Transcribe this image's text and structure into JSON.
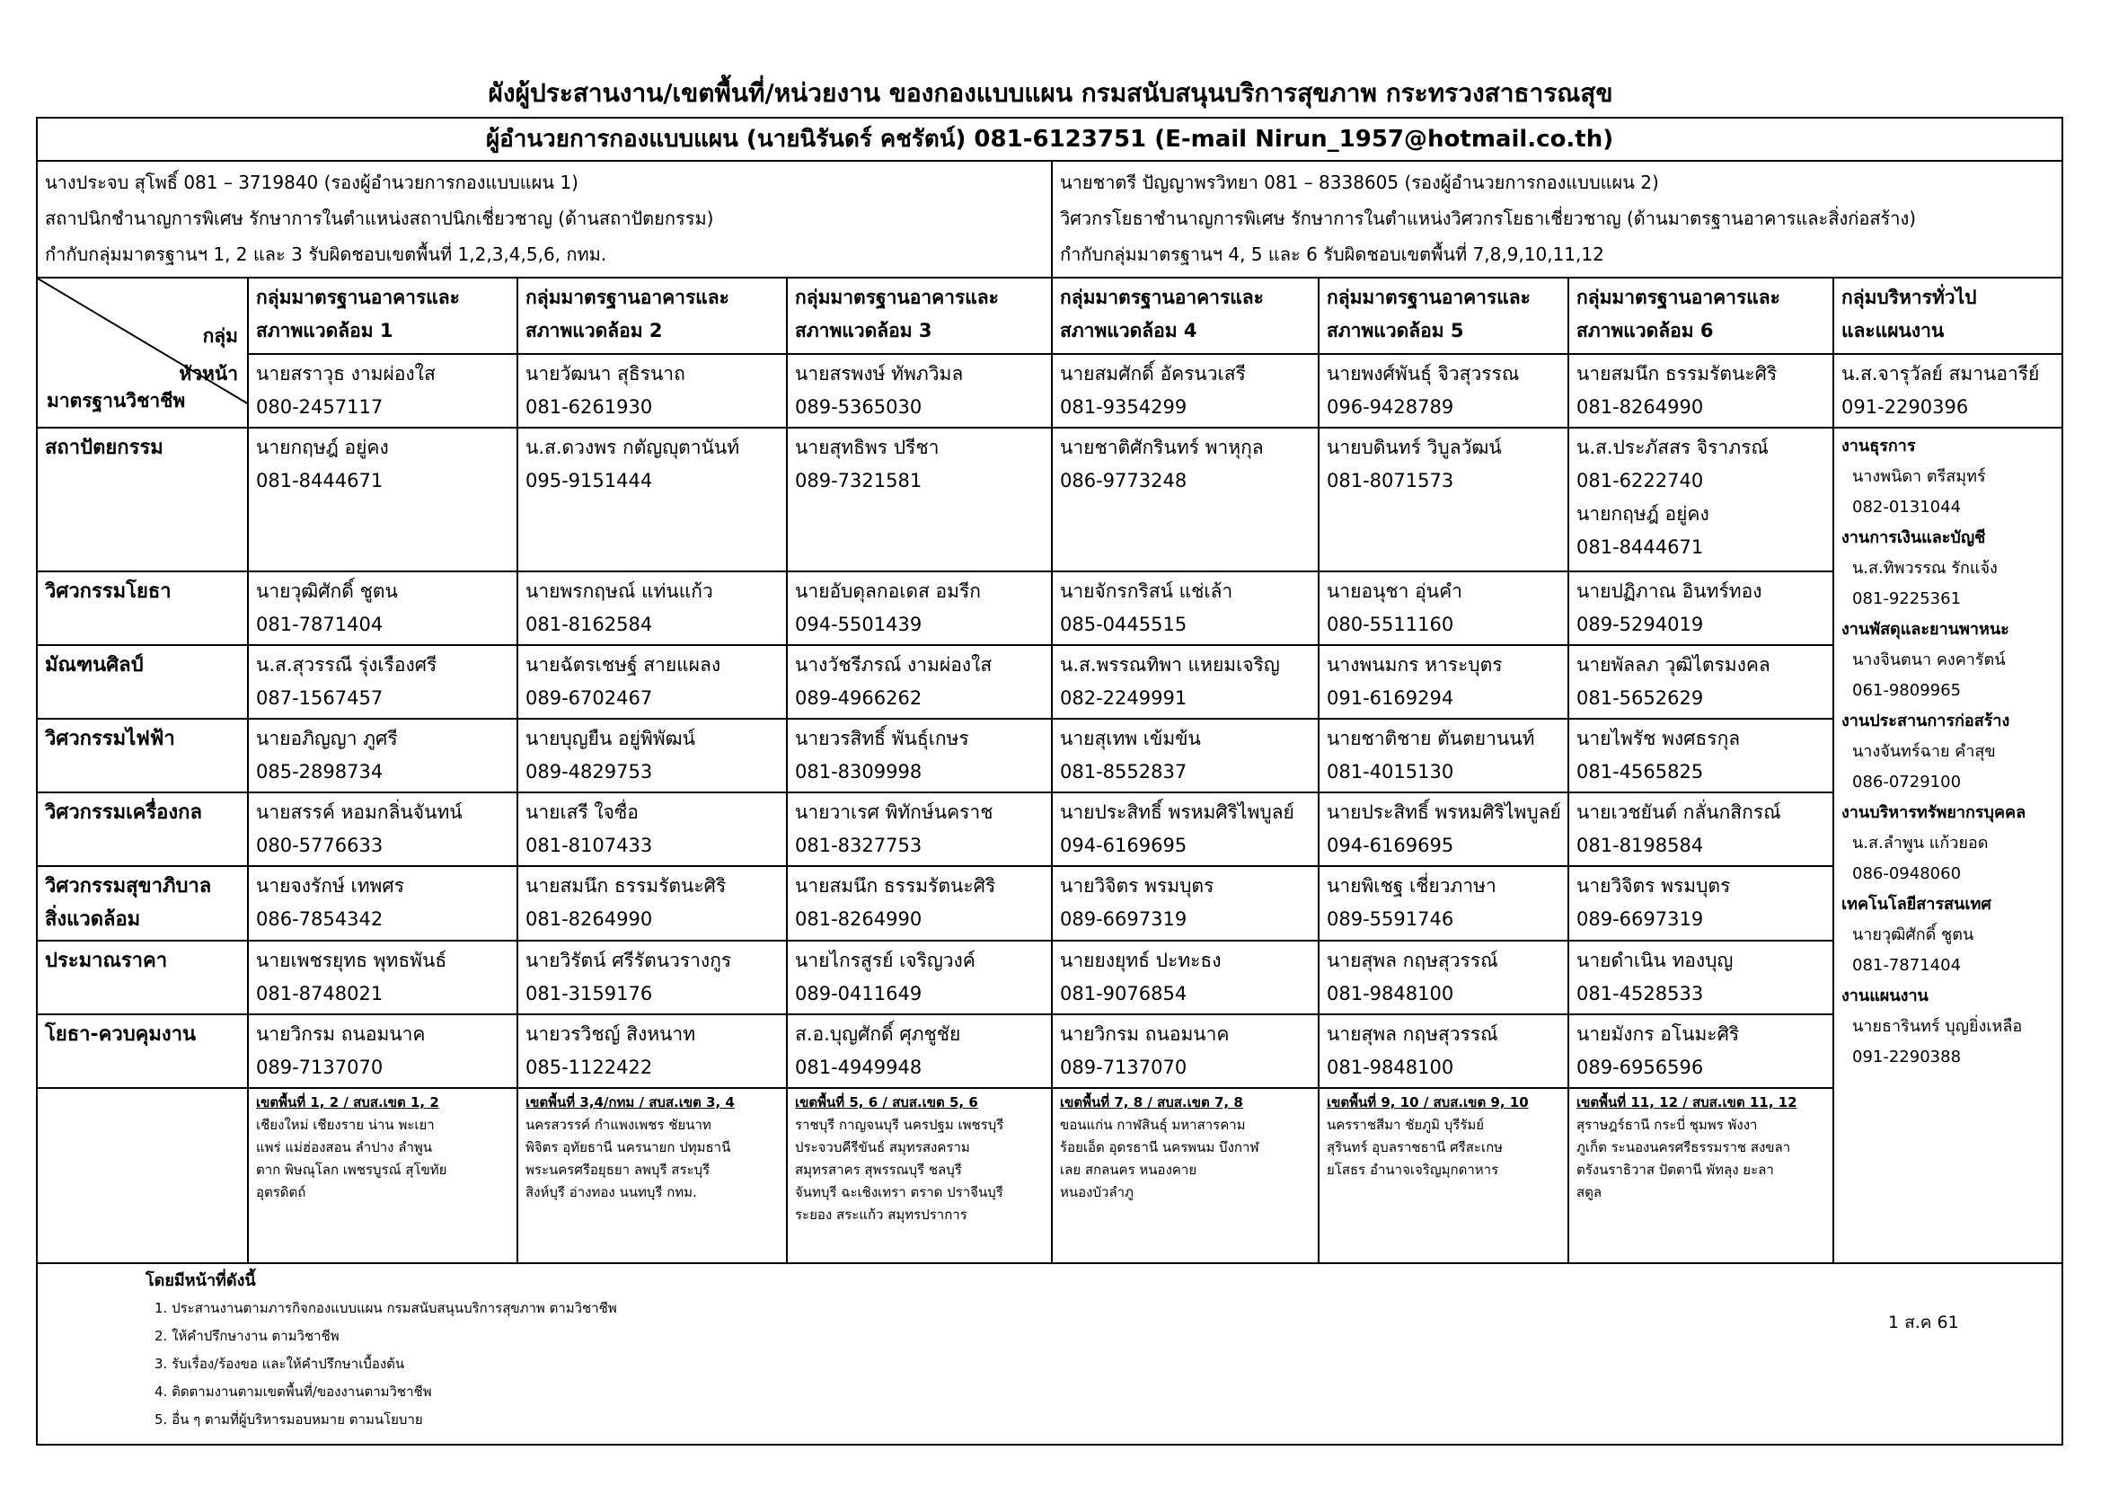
{
  "header": {
    "title": "ผังผู้ประสานงาน/เขตพื้นที่/หน่วยงาน ของกองแบบแผน กรมสนับสนุนบริการสุขภาพ กระทรวงสาธารณสุข",
    "director": "ผู้อำนวยการกองแบบแผน   (นายนิรันดร์ คชรัตน์)   081-6123751    (E-mail  Nirun_1957@hotmail.co.th)"
  },
  "deputies": [
    {
      "lines": [
        "นางประจบ สุโพธิ์  081 – 3719840  (รองผู้อำนวยการกองแบบแผน 1)",
        "สถาปนิกชำนาญการพิเศษ  รักษาการในตำแหน่งสถาปนิกเชี่ยวชาญ (ด้านสถาปัตยกรรม)",
        "กำกับกลุ่มมาตรฐานฯ  1, 2 และ 3    รับผิดชอบเขตพื้นที่ 1,2,3,4,5,6, กทม."
      ]
    },
    {
      "lines": [
        "นายชาตรี ปัญญาพรวิทยา  081 – 8338605 (รองผู้อำนวยการกองแบบแผน 2)",
        "วิศวกรโยธาชำนาญการพิเศษ  รักษาการในตำแหน่งวิศวกรโยธาเชี่ยวชาญ (ด้านมาตรฐานอาคารและสิ่งก่อสร้าง)",
        "กำกับกลุ่มมาตรฐานฯ 4, 5 และ 6     รับผิดชอบเขตพื้นที่  7,8,9,10,11,12"
      ]
    }
  ],
  "table": {
    "corner": [
      "กลุ่ม",
      "หัวหน้า",
      "มาตรฐานวิชาชีพ"
    ],
    "groups": [
      {
        "name": [
          "กลุ่มมาตรฐานอาคารและ",
          "สภาพแวดล้อม 1"
        ],
        "head": [
          "นายสราวุธ  งามผ่องใส",
          "080-2457117"
        ]
      },
      {
        "name": [
          "กลุ่มมาตรฐานอาคารและ",
          "สภาพแวดล้อม 2"
        ],
        "head": [
          "นายวัฒนา  สุธิรนาถ",
          "081-6261930"
        ]
      },
      {
        "name": [
          "กลุ่มมาตรฐานอาคารและ",
          "สภาพแวดล้อม 3"
        ],
        "head": [
          "นายสรพงษ์  ทัพภวิมล",
          "089-5365030"
        ]
      },
      {
        "name": [
          "กลุ่มมาตรฐานอาคารและ",
          "สภาพแวดล้อม 4"
        ],
        "head": [
          "นายสมศักดิ์  อัครนวเสรี",
          "081-9354299"
        ]
      },
      {
        "name": [
          "กลุ่มมาตรฐานอาคารและ",
          "สภาพแวดล้อม 5"
        ],
        "head": [
          "นายพงศ์พันธุ์ จิวสุวรรณ",
          "096-9428789"
        ]
      },
      {
        "name": [
          "กลุ่มมาตรฐานอาคารและ",
          "สภาพแวดล้อม 6"
        ],
        "head": [
          "นายสมนึก ธรรมรัตนะศิริ",
          "081-8264990"
        ]
      },
      {
        "name": [
          "กลุ่มบริหารทั่วไป",
          "และแผนงาน"
        ],
        "head": [
          "น.ส.จารุวัลย์ สมานอารีย์",
          "091-2290396"
        ]
      }
    ],
    "rows": [
      {
        "discipline": [
          "สถาปัตยกรรม"
        ],
        "cells": [
          [
            "นายกฤษฎ์ อยู่คง",
            "081-8444671"
          ],
          [
            "น.ส.ดวงพร กตัญญุตานันท์",
            "095-9151444"
          ],
          [
            "นายสุทธิพร ปรีชา",
            "089-7321581"
          ],
          [
            "นายชาติศักรินทร์ พาหุกุล",
            "086-9773248"
          ],
          [
            "นายบดินทร์ วิบูลวัฒน์",
            "081-8071573"
          ],
          [
            "น.ส.ประภัสสร จิราภรณ์",
            "081-6222740",
            "นายกฤษฎ์ อยู่คง",
            "081-8444671"
          ]
        ]
      },
      {
        "discipline": [
          "วิศวกรรมโยธา"
        ],
        "cells": [
          [
            "นายวุฒิศักดิ์ ชูตน",
            "081-7871404"
          ],
          [
            "นายพรกฤษณ์ แท่นแก้ว",
            "081-8162584"
          ],
          [
            "นายอับดุลกอเดส อมรีก",
            "094-5501439"
          ],
          [
            "นายจักรกริสน์ แช่เล้า",
            "085-0445515"
          ],
          [
            "นายอนุชา  อุ่นคำ",
            "080-5511160"
          ],
          [
            "นายปฏิภาณ อินทร์ทอง",
            "089-5294019"
          ]
        ]
      },
      {
        "discipline": [
          "มัณฑนศิลป์"
        ],
        "cells": [
          [
            "น.ส.สุวรรณี รุ่งเรืองศรี",
            "087-1567457"
          ],
          [
            "นายฉัตรเชษฐ์ สายแผลง",
            "089-6702467"
          ],
          [
            "นางวัชรีภรณ์ งามผ่องใส",
            "089-4966262"
          ],
          [
            "น.ส.พรรณทิพา แหยมเจริญ",
            "082-2249991"
          ],
          [
            "นางพนมกร  หาระบุตร",
            "091-6169294"
          ],
          [
            "นายพัลลภ วุฒิไตรมงคล",
            "081-5652629"
          ]
        ]
      },
      {
        "discipline": [
          "วิศวกรรมไฟฟ้า"
        ],
        "cells": [
          [
            "นายอภิญญา ภูศรี",
            "085-2898734"
          ],
          [
            "นายบุญยืน อยู่พิพัฒน์",
            "089-4829753"
          ],
          [
            "นายวรสิทธิ์ พันธุ์เกษร",
            "081-8309998"
          ],
          [
            "นายสุเทพ เข้มข้น",
            "081-8552837"
          ],
          [
            "นายชาติชาย ตันตยานนท์",
            "081-4015130"
          ],
          [
            "นายไพรัช พงศธรกุล",
            "081-4565825"
          ]
        ]
      },
      {
        "discipline": [
          "วิศวกรรมเครื่องกล"
        ],
        "cells": [
          [
            "นายสรรค์  หอมกลิ่นจันทน์",
            "080-5776633"
          ],
          [
            "นายเสรี  ใจซื่อ",
            "081-8107433"
          ],
          [
            "นายวาเรศ พิทักษ์นคราช",
            "081-8327753"
          ],
          [
            "นายประสิทธิ์ พรหมศิริไพบูลย์",
            "094-6169695"
          ],
          [
            "นายประสิทธิ์ พรหมศิริไพบูลย์",
            "094-6169695"
          ],
          [
            "นายเวชยันต์  กลั่นกสิกรณ์",
            "081-8198584"
          ]
        ]
      },
      {
        "discipline": [
          "วิศวกรรมสุขาภิบาล",
          "สิ่งแวดล้อม"
        ],
        "cells": [
          [
            "นายจงรักษ์ เทพศร",
            "086-7854342"
          ],
          [
            "นายสมนึก  ธรรมรัตนะศิริ",
            "081-8264990"
          ],
          [
            "นายสมนึก  ธรรมรัตนะศิริ",
            "081-8264990"
          ],
          [
            "นายวิจิตร พรมบุตร",
            "089-6697319"
          ],
          [
            "นายพิเชฐ เชี่ยวภาษา",
            "089-5591746"
          ],
          [
            "นายวิจิตร พรมบุตร",
            "089-6697319"
          ]
        ]
      },
      {
        "discipline": [
          "ประมาณราคา"
        ],
        "cells": [
          [
            "นายเพชรยุทธ  พุทธพันธ์",
            "081-8748021"
          ],
          [
            "นายวิรัตน์  ศรีรัตนวรางกูร",
            "081-3159176"
          ],
          [
            "นายไกรสูรย์ เจริญวงค์",
            "089-0411649"
          ],
          [
            "นายยงยุทธ์ ปะทะธง",
            "081-9076854"
          ],
          [
            "นายสุพล กฤษสุวรรณ์",
            "081-9848100"
          ],
          [
            "นายดำเนิน ทองบุญ",
            "081-4528533"
          ]
        ]
      },
      {
        "discipline": [
          "โยธา-ควบคุมงาน"
        ],
        "cells": [
          [
            "นายวิกรม ถนอมนาค",
            "089-7137070"
          ],
          [
            "นายวรวิชญ์ สิงหนาท",
            "085-1122422"
          ],
          [
            "ส.อ.บุญศักดิ์ ศุภชูชัย",
            "081-4949948"
          ],
          [
            "นายวิกรม ถนอมนาค",
            "089-7137070"
          ],
          [
            "นายสุพล กฤษสุวรรณ์",
            "081-9848100"
          ],
          [
            "นายมังกร อโนมะศิริ",
            "089-6956596"
          ]
        ]
      }
    ],
    "admin": [
      {
        "unit": "งานธุรการ",
        "lines": [
          "นางพนิดา ตรีสมุทร์",
          "082-0131044"
        ]
      },
      {
        "unit": "งานการเงินและบัญชี",
        "lines": [
          "น.ส.ทิพวรรณ  รักแจ้ง",
          "081-9225361"
        ]
      },
      {
        "unit": "งานพัสดุและยานพาหนะ",
        "lines": [
          "นางจินตนา คงคารัตน์",
          "061-9809965"
        ]
      },
      {
        "unit": "งานประสานการก่อสร้าง",
        "lines": [
          "นางจันทร์ฉาย คำสุข",
          "086-0729100"
        ]
      },
      {
        "unit": "งานบริหารทรัพยากรบุคคล",
        "lines": [
          "น.ส.ลำพูน แก้วยอด",
          "086-0948060"
        ]
      },
      {
        "unit": "เทคโนโลยีสารสนเทศ",
        "lines": [
          "นายวุฒิศักดิ์ ชูตน",
          "081-7871404"
        ]
      },
      {
        "unit": "งานแผนงาน",
        "lines": [
          "นายธารินทร์ บุญยิ่งเหลือ",
          "091-2290388"
        ]
      }
    ],
    "zones": [
      {
        "title": "เขตพื้นที่ 1, 2 / สบส.เขต 1, 2",
        "lines": [
          "เชียงใหม่ เชียงราย น่าน พะเยา",
          "แพร่ แม่ฮ่องสอน ลำปาง ลำพูน",
          "ตาก พิษณุโลก  เพชรบูรณ์ สุโขทัย",
          "อุตรดิตถ์"
        ]
      },
      {
        "title": "เขตพื้นที่ 3,4/กทม / สบส.เขต 3, 4",
        "lines": [
          "นครสวรรค์  กำแพงเพชร  ชัยนาท",
          "พิจิตร  อุทัยธานี  นครนายก ปทุมธานี",
          "พระนครศรีอยุธยา  ลพบุรี  สระบุรี",
          "สิงห์บุรี  อ่างทอง  นนทบุรี กทม."
        ]
      },
      {
        "title": "เขตพื้นที่ 5, 6 / สบส.เขต 5, 6",
        "lines": [
          "ราชบุรี  กาญจนบุรี นครปฐม เพชรบุรี",
          "ประจวบคีรีขันธ์  สมุทรสงคราม",
          "สมุทรสาคร  สุพรรณบุรี  ชลบุรี",
          "จันทบุรี  ฉะเชิงเทรา  ตราด  ปราจีนบุรี",
          "ระยอง  สระแก้ว  สมุทรปราการ"
        ]
      },
      {
        "title": "เขตพื้นที่ 7, 8 / สบส.เขต 7, 8",
        "lines": [
          "ขอนแก่น  กาฬสินธุ์  มหาสารคาม",
          "ร้อยเอ็ด  อุดรธานี  นครพนม  บึงกาฬ",
          "เลย  สกลนคร  หนองคาย",
          "หนองบัวลำภู"
        ]
      },
      {
        "title": "เขตพื้นที่ 9, 10 / สบส.เขต 9, 10",
        "lines": [
          "นครราชสีมา  ชัยภูมิ  บุรีรัมย์",
          "สุรินทร์  อุบลราชธานี  ศรีสะเกษ",
          "ยโสธร  อำนาจเจริญมุกดาหาร"
        ]
      },
      {
        "title": "เขตพื้นที่ 11, 12 / สบส.เขต 11, 12",
        "lines": [
          "สุราษฎร์ธานี  กระบี่  ชุมพร  พังงา",
          "ภูเก็ต  ระนองนครศรีธรรมราช  สงขลา",
          "ตรังนราธิวาส  ปัตตานี  พัทลุง  ยะลา",
          "สตูล"
        ]
      }
    ]
  },
  "footer": {
    "heading": "โดยมีหน้าที่ดังนี้",
    "items": [
      "1.  ประสานงานตามภารกิจกองแบบแผน กรมสนับสนุนบริการสุขภาพ ตามวิชาชีพ",
      "2.  ให้คำปรึกษางาน ตามวิชาชีพ",
      "3.  รับเรื่อง/ร้องขอ และให้คำปรึกษาเบื้องต้น",
      "4.  ติดตามงานตามเขตพื้นที่/ของงานตามวิชาชีพ",
      "5.  อื่น ๆ ตามที่ผู้บริหารมอบหมาย ตามนโยบาย"
    ],
    "date": "1 ส.ค 61"
  }
}
